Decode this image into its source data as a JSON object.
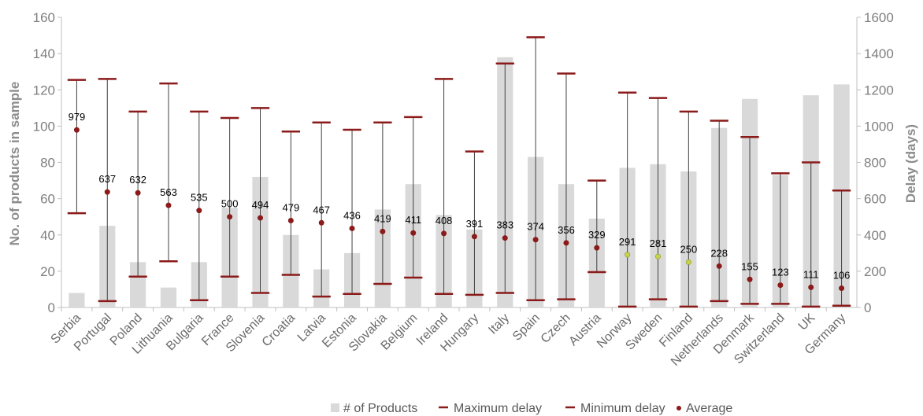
{
  "chart_data": {
    "type": "bar",
    "categories": [
      "Serbia",
      "Portugal",
      "Poland",
      "Lithuania",
      "Bulgaria",
      "France",
      "Slovenia",
      "Croatia",
      "Latvia",
      "Estonia",
      "Slovakia",
      "Belgium",
      "Ireland",
      "Hungary",
      "Italy",
      "Spain",
      "Czech",
      "Austria",
      "Norway",
      "Sweden",
      "Finland",
      "Netherlands",
      "Denmark",
      "Switzerland",
      "UK",
      "Germany"
    ],
    "series": [
      {
        "name": "# of Products",
        "axis": "left",
        "type": "bar",
        "values": [
          8,
          45,
          25,
          11,
          25,
          55,
          72,
          40,
          21,
          30,
          54,
          68,
          51,
          43,
          138,
          83,
          68,
          49,
          77,
          79,
          75,
          99,
          115,
          73,
          117,
          123
        ]
      },
      {
        "name": "Maximum delay",
        "axis": "right",
        "type": "marker",
        "values": [
          1255,
          1260,
          1080,
          1235,
          1080,
          1045,
          1100,
          970,
          1020,
          980,
          1020,
          1050,
          1260,
          860,
          1345,
          1490,
          1290,
          700,
          1185,
          1155,
          1080,
          1030,
          940,
          740,
          800,
          645
        ]
      },
      {
        "name": "Minimum delay",
        "axis": "right",
        "type": "marker",
        "values": [
          520,
          35,
          170,
          255,
          40,
          170,
          80,
          180,
          60,
          75,
          130,
          165,
          75,
          70,
          80,
          40,
          45,
          195,
          5,
          45,
          5,
          35,
          20,
          20,
          5,
          10
        ]
      },
      {
        "name": "Average",
        "axis": "right",
        "type": "marker",
        "values": [
          979,
          637,
          632,
          563,
          535,
          500,
          494,
          479,
          467,
          436,
          419,
          411,
          408,
          391,
          383,
          374,
          356,
          329,
          291,
          281,
          250,
          228,
          155,
          123,
          111,
          106
        ]
      }
    ],
    "average_labels": [
      "979",
      "637",
      "632",
      "563",
      "535",
      "500",
      "494",
      "479",
      "467",
      "436",
      "419",
      "411",
      "408",
      "391",
      "383",
      "374",
      "356",
      "329",
      "291",
      "281",
      "250",
      "228",
      "155",
      "123",
      "111",
      "106"
    ],
    "highlighted_average_indices": [
      18,
      19,
      20
    ],
    "ylabel": "No. of products in sample",
    "y2label": "Delay (days)",
    "ylim": [
      0,
      160
    ],
    "y2lim": [
      0,
      1600
    ],
    "yticks": [
      "0",
      "20",
      "40",
      "60",
      "80",
      "100",
      "120",
      "140",
      "160"
    ],
    "y2ticks": [
      "0",
      "200",
      "400",
      "600",
      "800",
      "1000",
      "1200",
      "1400",
      "1600"
    ],
    "grid": false,
    "legend_position": "bottom",
    "colors": {
      "bar": "#d9d9d9",
      "delay": "#8b1a1a",
      "range_line": "#404040",
      "highlight_average": "#c5d24a"
    }
  }
}
